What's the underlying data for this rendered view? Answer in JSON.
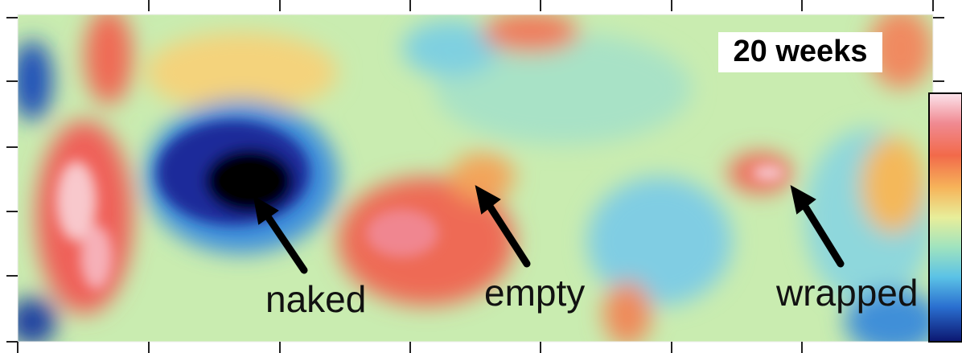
{
  "panel_label": "20 weeks",
  "annotations": [
    {
      "text": "naked"
    },
    {
      "text": "empty"
    },
    {
      "text": "wrapped"
    }
  ]
}
